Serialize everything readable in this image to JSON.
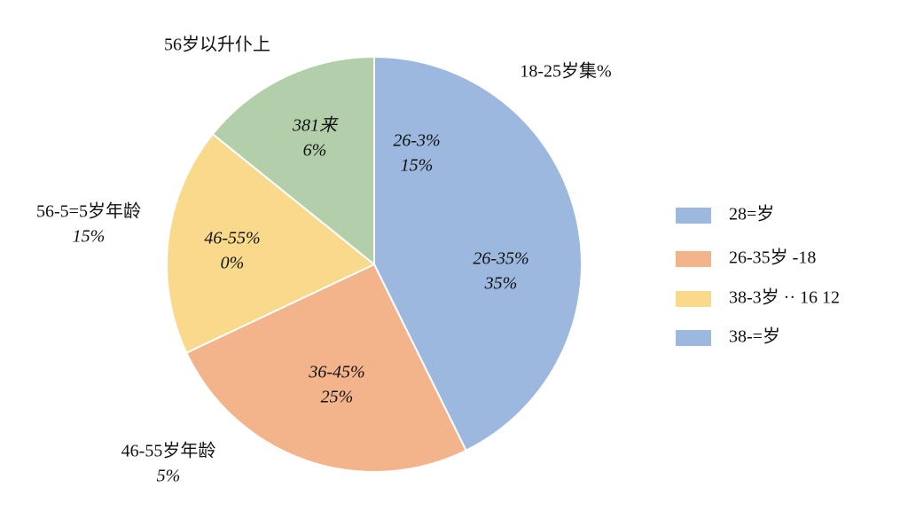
{
  "chart_data": {
    "type": "pie",
    "values": [
      42.7,
      25.3,
      17.8,
      14.2
    ],
    "colors": [
      "#9db8df",
      "#f3b48b",
      "#f9d98c",
      "#b3cfa9"
    ],
    "annotations": [
      {
        "lines": [
          "26-3%",
          "15%"
        ]
      },
      {
        "lines": [
          "26-35%",
          "35%"
        ]
      },
      {
        "lines": [
          "36-45%",
          "25%"
        ]
      },
      {
        "lines": [
          "46-55%",
          "0%"
        ]
      },
      {
        "lines": [
          "381来",
          "6%"
        ]
      },
      {
        "lines": [
          "56岁以升仆上"
        ]
      },
      {
        "lines": [
          "18-25岁集%"
        ]
      },
      {
        "lines": [
          "56-5=5岁年龄",
          "15%"
        ]
      },
      {
        "lines": [
          "46-55岁年龄",
          "5%"
        ]
      }
    ],
    "legend": [
      {
        "label": "28=岁",
        "color": "#9db8df"
      },
      {
        "label": "26-35岁 -18",
        "color": "#f3b48b"
      },
      {
        "label": "38-3岁 ·· 16 12",
        "color": "#f9d98c"
      },
      {
        "label": "38-=岁",
        "color": "#9db8df"
      }
    ]
  }
}
